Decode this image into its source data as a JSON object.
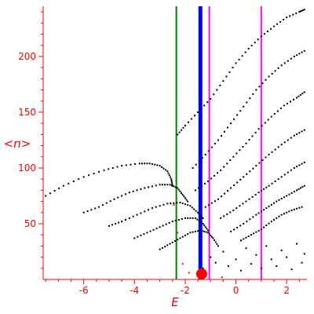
{
  "chart_data": {
    "type": "scatter",
    "title": "",
    "xlabel": "E",
    "ylabel": "<n>",
    "xlim": [
      -7.6,
      2.8
    ],
    "ylim": [
      0,
      245
    ],
    "x_ticks": [
      -6,
      -4,
      -2,
      0,
      2
    ],
    "y_ticks": [
      50,
      100,
      150,
      200
    ],
    "x_tick_labels": [
      "-6",
      "-4",
      "-2",
      "0",
      "2"
    ],
    "y_tick_labels": [
      "50",
      "100",
      "150",
      "200"
    ],
    "grid": false,
    "axis_color": "#ff0000",
    "vertical_lines": [
      {
        "x": -2.35,
        "color": "#008000",
        "width": 2
      },
      {
        "x": -1.4,
        "color": "#0000ff",
        "width": 5
      },
      {
        "x": -1.05,
        "color": "#ff00ff",
        "width": 2
      },
      {
        "x": 1.0,
        "color": "#ff00ff",
        "width": 2
      }
    ],
    "series": [
      {
        "color": "#000000",
        "points": [
          [
            -7.5,
            75
          ],
          [
            -6.8,
            84
          ],
          [
            -6.0,
            92
          ],
          [
            -5.2,
            98
          ],
          [
            -4.5,
            102
          ],
          [
            -3.8,
            104
          ],
          [
            -3.4,
            104
          ],
          [
            -3.0,
            102
          ],
          [
            -2.7,
            97
          ],
          [
            -2.55,
            90
          ],
          [
            -2.5,
            84
          ]
        ]
      },
      {
        "color": "#000000",
        "points": [
          [
            -6.0,
            60
          ],
          [
            -5.4,
            65
          ],
          [
            -4.8,
            72
          ],
          [
            -4.2,
            78
          ],
          [
            -3.6,
            82
          ],
          [
            -3.0,
            85
          ],
          [
            -2.6,
            85
          ],
          [
            -2.3,
            82
          ],
          [
            -2.1,
            76
          ],
          [
            -1.9,
            70
          ]
        ]
      },
      {
        "color": "#000000",
        "points": [
          [
            -5.0,
            48
          ],
          [
            -4.5,
            52
          ],
          [
            -3.9,
            58
          ],
          [
            -3.3,
            64
          ],
          [
            -2.7,
            68
          ],
          [
            -2.2,
            69
          ],
          [
            -1.8,
            66
          ],
          [
            -1.5,
            60
          ],
          [
            -1.3,
            55
          ]
        ]
      },
      {
        "color": "#000000",
        "points": [
          [
            -4.0,
            37
          ],
          [
            -3.5,
            42
          ],
          [
            -3.0,
            47
          ],
          [
            -2.5,
            52
          ],
          [
            -2.0,
            55
          ],
          [
            -1.6,
            55
          ],
          [
            -1.3,
            50
          ],
          [
            -1.1,
            44
          ]
        ]
      },
      {
        "color": "#000000",
        "points": [
          [
            -3.0,
            27
          ],
          [
            -2.6,
            32
          ],
          [
            -2.2,
            37
          ],
          [
            -1.8,
            42
          ],
          [
            -1.4,
            44
          ],
          [
            -1.1,
            42
          ],
          [
            -0.9,
            37
          ],
          [
            -0.7,
            30
          ]
        ]
      },
      {
        "color": "#000000",
        "points": [
          [
            -2.3,
            130
          ],
          [
            -2.0,
            138
          ],
          [
            -1.5,
            150
          ],
          [
            -1.0,
            162
          ],
          [
            -0.5,
            178
          ],
          [
            0,
            194
          ],
          [
            0.5,
            207
          ],
          [
            1.0,
            218
          ],
          [
            1.5,
            227
          ],
          [
            2.0,
            235
          ],
          [
            2.5,
            240
          ],
          [
            2.7,
            242
          ]
        ]
      },
      {
        "color": "#000000",
        "points": [
          [
            -1.7,
            100
          ],
          [
            -1.2,
            112
          ],
          [
            -0.7,
            125
          ],
          [
            -0.2,
            140
          ],
          [
            0.3,
            155
          ],
          [
            0.8,
            170
          ],
          [
            1.3,
            182
          ],
          [
            1.8,
            192
          ],
          [
            2.3,
            200
          ],
          [
            2.7,
            205
          ]
        ]
      },
      {
        "color": "#000000",
        "points": [
          [
            -1.6,
            80
          ],
          [
            -1.1,
            88
          ],
          [
            -0.6,
            98
          ],
          [
            -0.1,
            110
          ],
          [
            0.4,
            122
          ],
          [
            0.9,
            135
          ],
          [
            1.4,
            146
          ],
          [
            1.9,
            156
          ],
          [
            2.4,
            163
          ],
          [
            2.7,
            168
          ]
        ]
      },
      {
        "color": "#000000",
        "points": [
          [
            -1.2,
            65
          ],
          [
            -0.7,
            72
          ],
          [
            -0.2,
            82
          ],
          [
            0.3,
            92
          ],
          [
            0.8,
            102
          ],
          [
            1.3,
            112
          ],
          [
            1.8,
            121
          ],
          [
            2.3,
            129
          ],
          [
            2.7,
            134
          ]
        ]
      },
      {
        "color": "#000000",
        "points": [
          [
            -0.6,
            55
          ],
          [
            -0.1,
            62
          ],
          [
            0.4,
            70
          ],
          [
            0.9,
            78
          ],
          [
            1.3,
            84
          ],
          [
            1.8,
            92
          ],
          [
            2.3,
            100
          ],
          [
            2.7,
            105
          ]
        ]
      },
      {
        "color": "#000000",
        "points": [
          [
            -0.2,
            43
          ],
          [
            0.3,
            50
          ],
          [
            0.8,
            58
          ],
          [
            1.2,
            64
          ],
          [
            1.6,
            70
          ],
          [
            2.0,
            75
          ],
          [
            2.4,
            80
          ],
          [
            2.7,
            84
          ]
        ]
      },
      {
        "color": "#000000",
        "points": [
          [
            0.2,
            35
          ],
          [
            0.6,
            40
          ],
          [
            1.0,
            45
          ],
          [
            1.4,
            52
          ],
          [
            1.8,
            58
          ],
          [
            2.2,
            62
          ],
          [
            2.6,
            65
          ]
        ]
      },
      {
        "color": "#000000",
        "points": [
          [
            -1.3,
            10
          ],
          [
            -1.0,
            20
          ],
          [
            -0.8,
            15
          ],
          [
            -0.5,
            25
          ],
          [
            -0.3,
            12
          ],
          [
            0,
            18
          ],
          [
            0.2,
            8
          ],
          [
            0.4,
            28
          ],
          [
            0.6,
            14
          ],
          [
            0.8,
            22
          ],
          [
            1.0,
            10
          ],
          [
            1.2,
            30
          ],
          [
            1.4,
            18
          ],
          [
            1.6,
            12
          ],
          [
            1.8,
            26
          ],
          [
            2.0,
            20
          ],
          [
            2.2,
            9
          ],
          [
            2.4,
            32
          ],
          [
            2.6,
            15
          ],
          [
            2.7,
            23
          ]
        ]
      },
      {
        "color": "#ff0000",
        "points": [
          [
            -2.45,
            67
          ],
          [
            -2.3,
            42
          ],
          [
            -2.1,
            14
          ],
          [
            -1.85,
            6
          ],
          [
            -0.55,
            2
          ]
        ]
      }
    ],
    "markers": [
      {
        "x": -1.35,
        "y": 5,
        "size": 14,
        "color": "#ff0000"
      }
    ]
  }
}
